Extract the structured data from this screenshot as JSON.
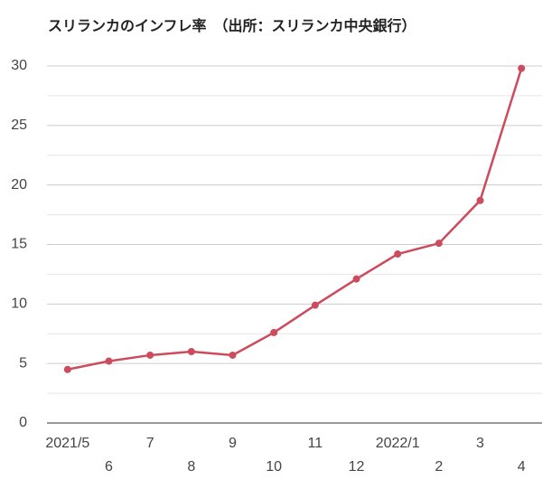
{
  "chart_data": {
    "type": "line",
    "title": "スリランカのインフレ率　（出所：スリランカ中央銀行）",
    "categories": [
      "2021/5",
      "6",
      "7",
      "8",
      "9",
      "10",
      "11",
      "12",
      "2022/1",
      "2",
      "3",
      "4"
    ],
    "values": [
      4.5,
      5.2,
      5.7,
      6.0,
      5.7,
      7.6,
      9.9,
      12.1,
      14.2,
      15.1,
      18.7,
      29.8
    ],
    "color": "#cc4b5c",
    "ylim": [
      0,
      30
    ],
    "yticks": [
      0,
      5,
      10,
      15,
      20,
      25,
      30
    ],
    "grid": true
  }
}
